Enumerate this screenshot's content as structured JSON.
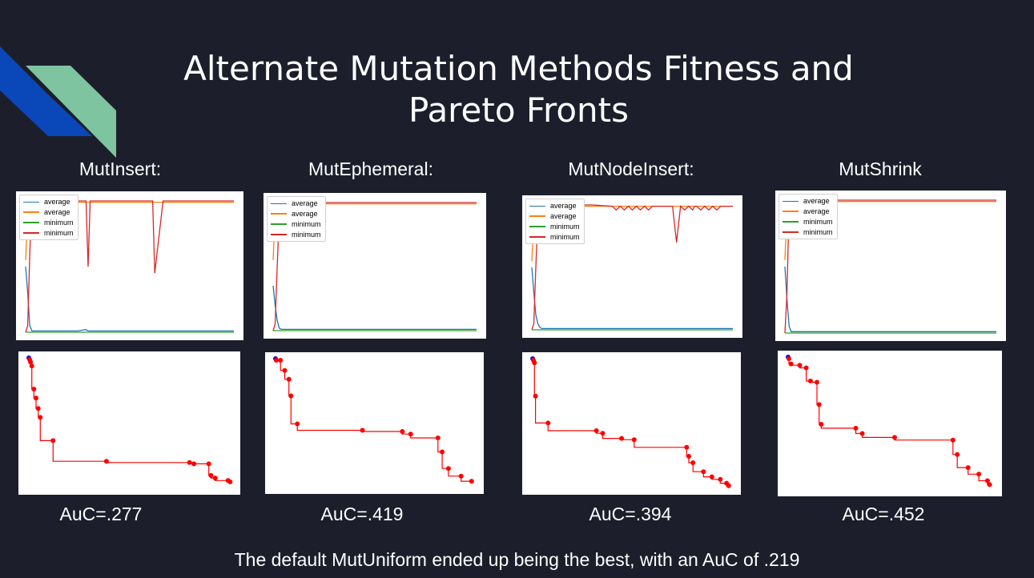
{
  "slide": {
    "title": "Alternate Mutation Methods Fitness and Pareto Fronts",
    "footer": "The default MutUniform ended up being the best, with an AuC of .219"
  },
  "colors": {
    "background": "#1c1f2b",
    "accent_blue": "#0a47b8",
    "accent_green": "#7ec4a0",
    "series_blue": "#1f77b4",
    "series_orange": "#ff7f0e",
    "series_green": "#2ca02c",
    "series_red": "#d62728",
    "pareto": "#ff0000"
  },
  "methods": [
    {
      "label": "MutInsert:",
      "auc": "AuC=.277"
    },
    {
      "label": "MutEphemeral:",
      "auc": "AuC=.419"
    },
    {
      "label": "MutNodeInsert:",
      "auc": "AuC=.394"
    },
    {
      "label": "MutShrink",
      "auc": "AuC=.452"
    }
  ],
  "chart_data": [
    {
      "type": "line",
      "method": "MutInsert",
      "legend": [
        "average",
        "average",
        "minimum",
        "minimum"
      ],
      "legend_position": "top-left",
      "grid": false,
      "x": [
        0,
        1,
        2,
        3,
        5,
        10,
        15,
        20,
        25,
        29,
        30,
        31,
        35,
        40,
        50,
        60,
        61,
        62,
        66,
        70,
        80,
        100
      ],
      "ylim": [
        0,
        1
      ],
      "series": [
        {
          "name": "average",
          "color": "#1f77b4",
          "values": [
            0.5,
            0.3,
            0.05,
            0.01,
            0.01,
            0.01,
            0.01,
            0.01,
            0.01,
            0.02,
            0.01,
            0.01,
            0.01,
            0.01,
            0.01,
            0.01,
            0.01,
            0.01,
            0.01,
            0.01,
            0.01,
            0.01
          ]
        },
        {
          "name": "average",
          "color": "#ff7f0e",
          "values": [
            0.55,
            0.9,
            0.98,
            0.99,
            0.99,
            0.99,
            0.99,
            0.99,
            0.99,
            0.99,
            0.99,
            0.99,
            0.99,
            0.99,
            0.99,
            0.99,
            0.99,
            0.99,
            0.99,
            0.99,
            0.99,
            0.99
          ]
        },
        {
          "name": "minimum",
          "color": "#2ca02c",
          "values": [
            0,
            0,
            0,
            0,
            0,
            0,
            0,
            0,
            0,
            0,
            0,
            0,
            0,
            0,
            0,
            0,
            0,
            0,
            0,
            0,
            0,
            0
          ]
        },
        {
          "name": "minimum",
          "color": "#d62728",
          "values": [
            0,
            0.05,
            0.6,
            1,
            1,
            1,
            1,
            1,
            1,
            1,
            0.5,
            1,
            1,
            1,
            1,
            1,
            1,
            0.45,
            1,
            1,
            1,
            1
          ]
        }
      ],
      "pareto": {
        "x": [
          0,
          0.4,
          1,
          2,
          3,
          4,
          5,
          11,
          36,
          75,
          77,
          84,
          85,
          87,
          93,
          94
        ],
        "y": [
          1,
          0.98,
          0.95,
          0.77,
          0.7,
          0.62,
          0.55,
          0.37,
          0.21,
          0.2,
          0.19,
          0.19,
          0.1,
          0.08,
          0.06,
          0.05
        ]
      }
    },
    {
      "type": "line",
      "method": "MutEphemeral",
      "legend": [
        "average",
        "average",
        "minimum",
        "minimum"
      ],
      "legend_position": "top-left",
      "grid": false,
      "x": [
        0,
        1,
        2,
        3,
        4,
        5,
        10,
        20,
        40,
        60,
        80,
        100
      ],
      "ylim": [
        0,
        1
      ],
      "series": [
        {
          "name": "average",
          "color": "#1f77b4",
          "values": [
            0.35,
            0.2,
            0.08,
            0.02,
            0.01,
            0.01,
            0.01,
            0.01,
            0.01,
            0.01,
            0.01,
            0.01
          ]
        },
        {
          "name": "average",
          "color": "#ff7f0e",
          "values": [
            0.55,
            0.9,
            0.98,
            0.99,
            0.99,
            0.99,
            0.99,
            0.99,
            0.99,
            0.99,
            0.99,
            0.99
          ]
        },
        {
          "name": "minimum",
          "color": "#2ca02c",
          "values": [
            0,
            0,
            0,
            0,
            0,
            0,
            0,
            0,
            0,
            0,
            0,
            0
          ]
        },
        {
          "name": "minimum",
          "color": "#d62728",
          "values": [
            0,
            0.05,
            0.5,
            0.9,
            1,
            1,
            1,
            1,
            1,
            1,
            1,
            1
          ]
        }
      ],
      "pareto": {
        "x": [
          0,
          2,
          4,
          6,
          7,
          10,
          41,
          60,
          64,
          77,
          79,
          82,
          88,
          93
        ],
        "y": [
          1,
          1,
          0.92,
          0.85,
          0.72,
          0.5,
          0.45,
          0.44,
          0.42,
          0.39,
          0.28,
          0.15,
          0.09,
          0.05
        ]
      }
    },
    {
      "type": "line",
      "method": "MutNodeInsert",
      "legend": [
        "average",
        "average",
        "minimum",
        "minimum"
      ],
      "legend_position": "top-left",
      "grid": false,
      "x": [
        0,
        1,
        2,
        3,
        4,
        5,
        10,
        20,
        30,
        40,
        42,
        44,
        46,
        48,
        50,
        52,
        54,
        56,
        58,
        60,
        70,
        72,
        74,
        76,
        78,
        80,
        81,
        82,
        84,
        86,
        88,
        90,
        92,
        94,
        96,
        100
      ],
      "ylim": [
        0,
        1
      ],
      "series": [
        {
          "name": "average",
          "color": "#1f77b4",
          "values": [
            0.5,
            0.3,
            0.12,
            0.05,
            0.02,
            0.01,
            0.01,
            0.01,
            0.01,
            0.01,
            0.01,
            0.01,
            0.01,
            0.01,
            0.01,
            0.01,
            0.01,
            0.01,
            0.01,
            0.01,
            0.01,
            0.01,
            0.01,
            0.01,
            0.01,
            0.01,
            0.01,
            0.01,
            0.01,
            0.01,
            0.01,
            0.01,
            0.01,
            0.01,
            0.01,
            0.01
          ]
        },
        {
          "name": "average",
          "color": "#ff7f0e",
          "values": [
            0.55,
            0.9,
            0.98,
            0.99,
            0.99,
            0.99,
            0.99,
            0.99,
            0.99,
            0.99,
            0.99,
            0.99,
            0.99,
            0.99,
            0.99,
            0.99,
            0.99,
            0.99,
            0.99,
            0.99,
            0.99,
            0.99,
            0.99,
            0.99,
            0.99,
            0.99,
            0.99,
            0.99,
            0.99,
            0.99,
            0.99,
            0.99,
            0.99,
            0.99,
            0.99,
            0.99
          ]
        },
        {
          "name": "minimum",
          "color": "#2ca02c",
          "values": [
            0,
            0,
            0,
            0,
            0,
            0,
            0,
            0,
            0,
            0,
            0,
            0,
            0,
            0,
            0,
            0,
            0,
            0,
            0,
            0,
            0,
            0,
            0,
            0,
            0,
            0,
            0,
            0,
            0,
            0,
            0,
            0,
            0,
            0,
            0,
            0
          ]
        },
        {
          "name": "minimum",
          "color": "#d62728",
          "values": [
            0,
            0.05,
            0.5,
            0.9,
            1,
            1,
            1,
            1,
            1,
            0.99,
            0.96,
            0.99,
            0.96,
            0.99,
            0.96,
            0.99,
            0.96,
            0.99,
            0.96,
            0.99,
            0.99,
            0.7,
            0.99,
            0.96,
            0.99,
            0.96,
            0.99,
            0.99,
            0.96,
            0.99,
            0.96,
            0.99,
            0.96,
            0.99,
            0.99,
            0.99
          ]
        }
      ],
      "pareto": {
        "x": [
          0,
          0.5,
          1,
          7,
          30,
          33,
          42,
          48,
          73,
          74,
          76,
          81,
          85,
          89,
          92,
          93
        ],
        "y": [
          1,
          0.98,
          0.72,
          0.51,
          0.45,
          0.43,
          0.39,
          0.38,
          0.32,
          0.25,
          0.2,
          0.13,
          0.09,
          0.07,
          0.04,
          0.02
        ]
      }
    },
    {
      "type": "line",
      "method": "MutShrink",
      "legend": [
        "average",
        "average",
        "minimum",
        "minimum"
      ],
      "legend_position": "top-left",
      "grid": false,
      "x": [
        0,
        1,
        2,
        3,
        4,
        5,
        10,
        20,
        40,
        60,
        80,
        100
      ],
      "ylim": [
        0,
        1
      ],
      "series": [
        {
          "name": "average",
          "color": "#1f77b4",
          "values": [
            0.5,
            0.25,
            0.05,
            0.01,
            0.01,
            0.01,
            0.01,
            0.01,
            0.01,
            0.01,
            0.01,
            0.01
          ]
        },
        {
          "name": "average",
          "color": "#ff7f0e",
          "values": [
            0.55,
            0.92,
            0.99,
            0.99,
            0.99,
            0.99,
            0.99,
            0.99,
            0.99,
            0.99,
            0.99,
            0.99
          ]
        },
        {
          "name": "minimum",
          "color": "#2ca02c",
          "values": [
            0,
            0,
            0,
            0,
            0,
            0,
            0,
            0,
            0,
            0,
            0,
            0
          ]
        },
        {
          "name": "minimum",
          "color": "#d62728",
          "values": [
            0,
            0.3,
            0.99,
            1,
            1,
            1,
            1,
            1,
            1,
            1,
            1,
            1
          ]
        }
      ],
      "pareto": {
        "x": [
          0,
          1,
          5,
          8,
          10,
          13,
          14,
          15,
          31,
          34,
          49,
          76,
          78,
          83,
          88,
          92,
          93
        ],
        "y": [
          1,
          0.96,
          0.95,
          0.93,
          0.83,
          0.82,
          0.65,
          0.5,
          0.47,
          0.43,
          0.4,
          0.38,
          0.27,
          0.17,
          0.12,
          0.07,
          0.04
        ]
      }
    }
  ]
}
